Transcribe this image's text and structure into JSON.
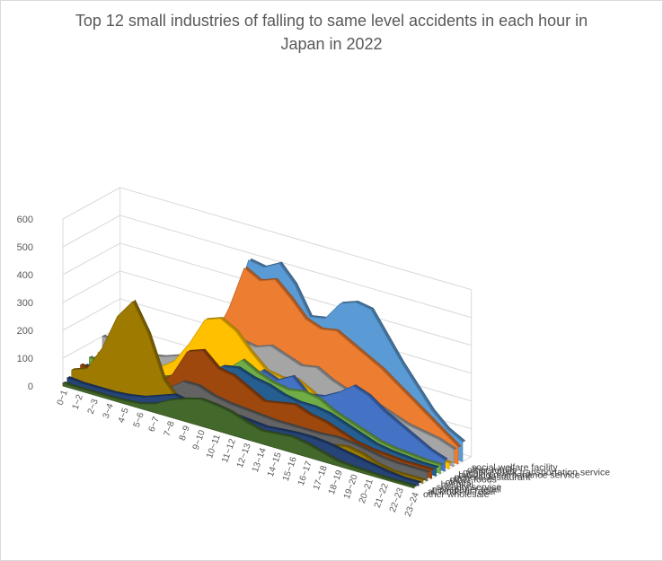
{
  "chart_data": {
    "type": "area",
    "title": "Top 12 small industries of falling to same level accidents in each hour in Japan in 2022",
    "y_ticks": [
      "0",
      "100",
      "200",
      "300",
      "400",
      "500",
      "600"
    ],
    "ylim": [
      0,
      600
    ],
    "categories": [
      "0~1",
      "1~2",
      "2~3",
      "3~4",
      "4~5",
      "5~6",
      "6~7",
      "7~8",
      "8~9",
      "9~10",
      "10~11",
      "11~12",
      "12~13",
      "13~14",
      "14~15",
      "15~16",
      "16~17",
      "17~18",
      "18~19",
      "19~20",
      "20~21",
      "21~22",
      "22~23",
      "23~24"
    ],
    "series": [
      {
        "name": "other wholesale",
        "color": "#43682b",
        "values": [
          10,
          8,
          8,
          8,
          10,
          15,
          30,
          60,
          80,
          95,
          90,
          80,
          60,
          45,
          50,
          55,
          45,
          30,
          15,
          10,
          8,
          5,
          5,
          5
        ]
      },
      {
        "name": "all kinds of retail",
        "color": "#264478",
        "values": [
          20,
          15,
          15,
          15,
          20,
          30,
          50,
          70,
          60,
          60,
          65,
          60,
          55,
          50,
          55,
          60,
          60,
          55,
          45,
          35,
          25,
          15,
          10,
          10
        ]
      },
      {
        "name": "newspaper retail",
        "color": "#9e7b00",
        "values": [
          40,
          60,
          150,
          280,
          350,
          250,
          100,
          40,
          25,
          20,
          15,
          10,
          10,
          10,
          10,
          15,
          20,
          40,
          50,
          40,
          20,
          10,
          10,
          10
        ]
      },
      {
        "name": "security service",
        "color": "#636363",
        "values": [
          30,
          25,
          25,
          25,
          30,
          40,
          60,
          100,
          100,
          80,
          70,
          65,
          60,
          55,
          55,
          55,
          55,
          60,
          55,
          45,
          35,
          30,
          30,
          30
        ]
      },
      {
        "name": "hospital",
        "color": "#9e480e",
        "values": [
          40,
          30,
          30,
          30,
          40,
          60,
          100,
          200,
          220,
          170,
          160,
          130,
          100,
          110,
          120,
          100,
          90,
          70,
          50,
          40,
          35,
          30,
          30,
          30
        ]
      },
      {
        "name": "others",
        "color": "#255e91",
        "values": [
          30,
          25,
          25,
          25,
          30,
          40,
          70,
          110,
          130,
          170,
          180,
          160,
          150,
          130,
          120,
          120,
          110,
          90,
          70,
          50,
          40,
          35,
          30,
          30
        ]
      },
      {
        "name": "other foods",
        "color": "#70ad47",
        "values": [
          50,
          35,
          30,
          30,
          40,
          60,
          80,
          130,
          140,
          150,
          200,
          170,
          150,
          140,
          150,
          140,
          110,
          90,
          70,
          50,
          40,
          35,
          30,
          30
        ]
      },
      {
        "name": "general restaurant",
        "color": "#4472c4",
        "values": [
          40,
          30,
          25,
          25,
          25,
          30,
          40,
          55,
          60,
          70,
          100,
          170,
          150,
          180,
          130,
          140,
          170,
          210,
          190,
          150,
          120,
          90,
          60,
          40
        ]
      },
      {
        "name": "building maintenance service",
        "color": "#ffc000",
        "values": [
          50,
          40,
          35,
          40,
          60,
          100,
          180,
          280,
          300,
          270,
          210,
          160,
          150,
          160,
          130,
          90,
          60,
          40,
          30,
          30,
          25,
          25,
          20,
          20
        ]
      },
      {
        "name": "general truck transportation service",
        "color": "#a5a5a5",
        "values": [
          100,
          90,
          80,
          80,
          90,
          110,
          140,
          170,
          190,
          230,
          220,
          240,
          220,
          200,
          210,
          180,
          160,
          150,
          140,
          120,
          100,
          90,
          80,
          60
        ]
      },
      {
        "name": "other retails",
        "color": "#ed7d31",
        "values": [
          60,
          50,
          50,
          50,
          60,
          80,
          120,
          200,
          320,
          480,
          450,
          470,
          420,
          360,
          340,
          350,
          320,
          290,
          260,
          220,
          180,
          140,
          100,
          60
        ]
      },
      {
        "name": "social welfare facility",
        "color": "#5b9bd5",
        "values": [
          70,
          60,
          55,
          55,
          60,
          80,
          120,
          200,
          320,
          500,
          490,
          520,
          460,
          360,
          370,
          440,
          460,
          450,
          370,
          290,
          220,
          150,
          100,
          70
        ]
      }
    ]
  }
}
